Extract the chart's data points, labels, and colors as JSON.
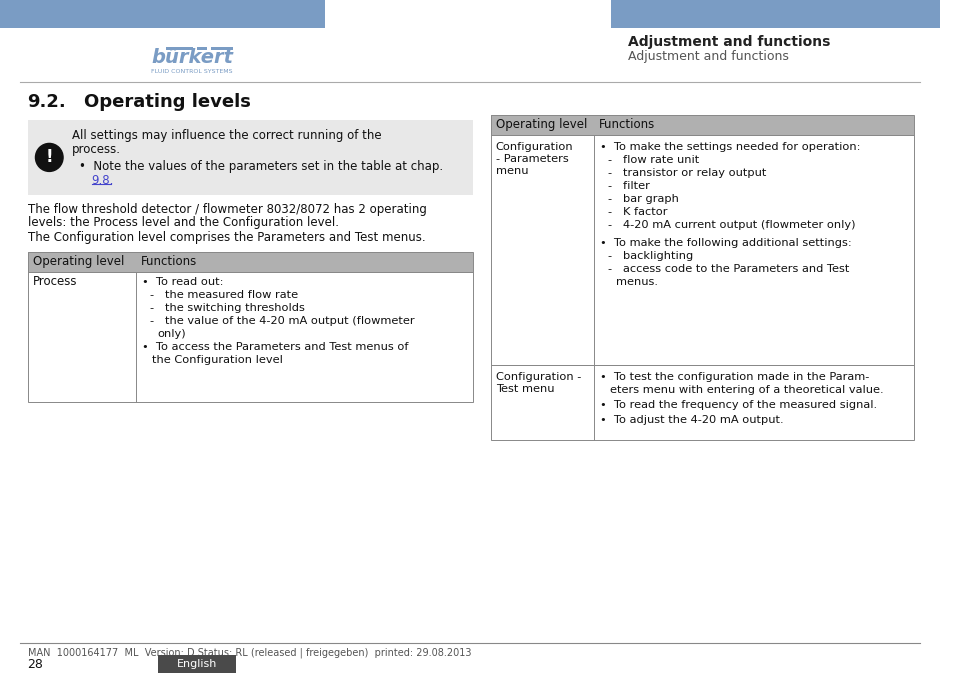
{
  "page_bg": "#ffffff",
  "header_bar_color": "#7a9cc4",
  "right_header_bold": "Adjustment and functions",
  "right_header_light": "Adjustment and functions",
  "warning_bg": "#e8e8e8",
  "warning_text_line1": "All settings may influence the correct running of the",
  "warning_text_line2": "process.",
  "warning_bullet": "Note the values of the parameters set in the table at chap.",
  "warning_bullet_link": "9.8.",
  "body_text1": "The flow threshold detector / flowmeter 8032/8072 has 2 operating",
  "body_text1b": "levels: the Process level and the Configuration level.",
  "body_text2": "The Configuration level comprises the Parameters and Test menus.",
  "table_header_bg": "#b0b0b0",
  "table_header_col1": "Operating level",
  "table_header_col2": "Functions",
  "footer_line": "MAN  1000164177  ML  Version: D Status: RL (released | freigegeben)  printed: 29.08.2013",
  "footer_page": "28",
  "footer_lang_bg": "#4a4a4a",
  "footer_lang": "English",
  "link_color": "#4444cc",
  "table_border_color": "#888888"
}
